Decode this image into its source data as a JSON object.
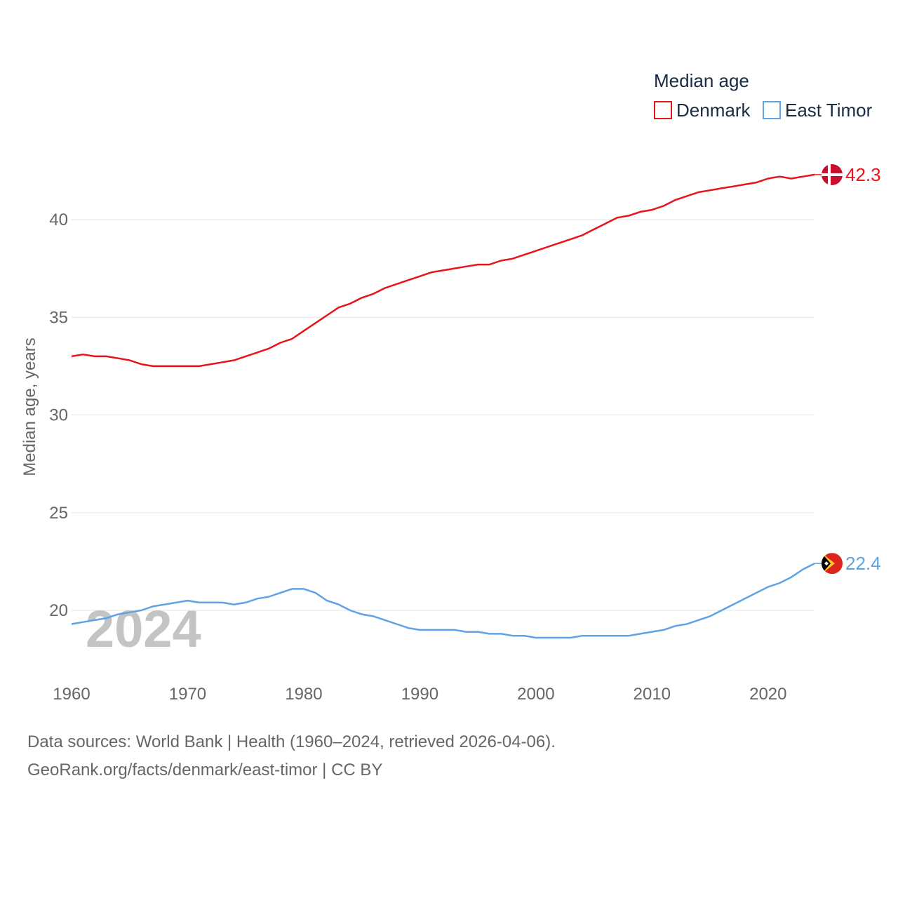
{
  "chart_data": {
    "type": "line",
    "legend_title": "Median age",
    "legend_position": "top-right",
    "ylabel": "Median age, years",
    "xlabel": "",
    "xlim": [
      1960,
      2024
    ],
    "ylim": [
      17.5,
      43.5
    ],
    "y_ticks": [
      20,
      25,
      30,
      35,
      40
    ],
    "x_ticks": [
      1960,
      1970,
      1980,
      1990,
      2000,
      2010,
      2020
    ],
    "grid": true,
    "year_watermark": "2024",
    "series": [
      {
        "name": "Denmark",
        "color": "#e8141c",
        "end_label": "42.3",
        "flag": "denmark-flag",
        "x": [
          1960,
          1961,
          1962,
          1963,
          1964,
          1965,
          1966,
          1967,
          1968,
          1969,
          1970,
          1971,
          1972,
          1973,
          1974,
          1975,
          1976,
          1977,
          1978,
          1979,
          1980,
          1981,
          1982,
          1983,
          1984,
          1985,
          1986,
          1987,
          1988,
          1989,
          1990,
          1991,
          1992,
          1993,
          1994,
          1995,
          1996,
          1997,
          1998,
          1999,
          2000,
          2001,
          2002,
          2003,
          2004,
          2005,
          2006,
          2007,
          2008,
          2009,
          2010,
          2011,
          2012,
          2013,
          2014,
          2015,
          2016,
          2017,
          2018,
          2019,
          2020,
          2021,
          2022,
          2023,
          2024
        ],
        "values": [
          33.0,
          33.1,
          33.0,
          33.0,
          32.9,
          32.8,
          32.6,
          32.5,
          32.5,
          32.5,
          32.5,
          32.5,
          32.6,
          32.7,
          32.8,
          33.0,
          33.2,
          33.4,
          33.7,
          33.9,
          34.3,
          34.7,
          35.1,
          35.5,
          35.7,
          36.0,
          36.2,
          36.5,
          36.7,
          36.9,
          37.1,
          37.3,
          37.4,
          37.5,
          37.6,
          37.7,
          37.7,
          37.9,
          38.0,
          38.2,
          38.4,
          38.6,
          38.8,
          39.0,
          39.2,
          39.5,
          39.8,
          40.1,
          40.2,
          40.4,
          40.5,
          40.7,
          41.0,
          41.2,
          41.4,
          41.5,
          41.6,
          41.7,
          41.8,
          41.9,
          42.1,
          42.2,
          42.1,
          42.2,
          42.3
        ]
      },
      {
        "name": "East Timor",
        "color": "#5ea3e4",
        "end_label": "22.4",
        "flag": "east-timor-flag",
        "x": [
          1960,
          1961,
          1962,
          1963,
          1964,
          1965,
          1966,
          1967,
          1968,
          1969,
          1970,
          1971,
          1972,
          1973,
          1974,
          1975,
          1976,
          1977,
          1978,
          1979,
          1980,
          1981,
          1982,
          1983,
          1984,
          1985,
          1986,
          1987,
          1988,
          1989,
          1990,
          1991,
          1992,
          1993,
          1994,
          1995,
          1996,
          1997,
          1998,
          1999,
          2000,
          2001,
          2002,
          2003,
          2004,
          2005,
          2006,
          2007,
          2008,
          2009,
          2010,
          2011,
          2012,
          2013,
          2014,
          2015,
          2016,
          2017,
          2018,
          2019,
          2020,
          2021,
          2022,
          2023,
          2024
        ],
        "values": [
          19.3,
          19.4,
          19.5,
          19.6,
          19.8,
          19.9,
          20.0,
          20.2,
          20.3,
          20.4,
          20.5,
          20.4,
          20.4,
          20.4,
          20.3,
          20.4,
          20.6,
          20.7,
          20.9,
          21.1,
          21.1,
          20.9,
          20.5,
          20.3,
          20.0,
          19.8,
          19.7,
          19.5,
          19.3,
          19.1,
          19.0,
          19.0,
          19.0,
          19.0,
          18.9,
          18.9,
          18.8,
          18.8,
          18.7,
          18.7,
          18.6,
          18.6,
          18.6,
          18.6,
          18.7,
          18.7,
          18.7,
          18.7,
          18.7,
          18.8,
          18.9,
          19.0,
          19.2,
          19.3,
          19.5,
          19.7,
          20.0,
          20.3,
          20.6,
          20.9,
          21.2,
          21.4,
          21.7,
          22.1,
          22.4
        ]
      }
    ]
  },
  "sources": {
    "line1": "Data sources: World Bank | Health (1960–2024, retrieved 2026-04-06).",
    "line2": "GeoRank.org/facts/denmark/east-timor | CC BY"
  }
}
